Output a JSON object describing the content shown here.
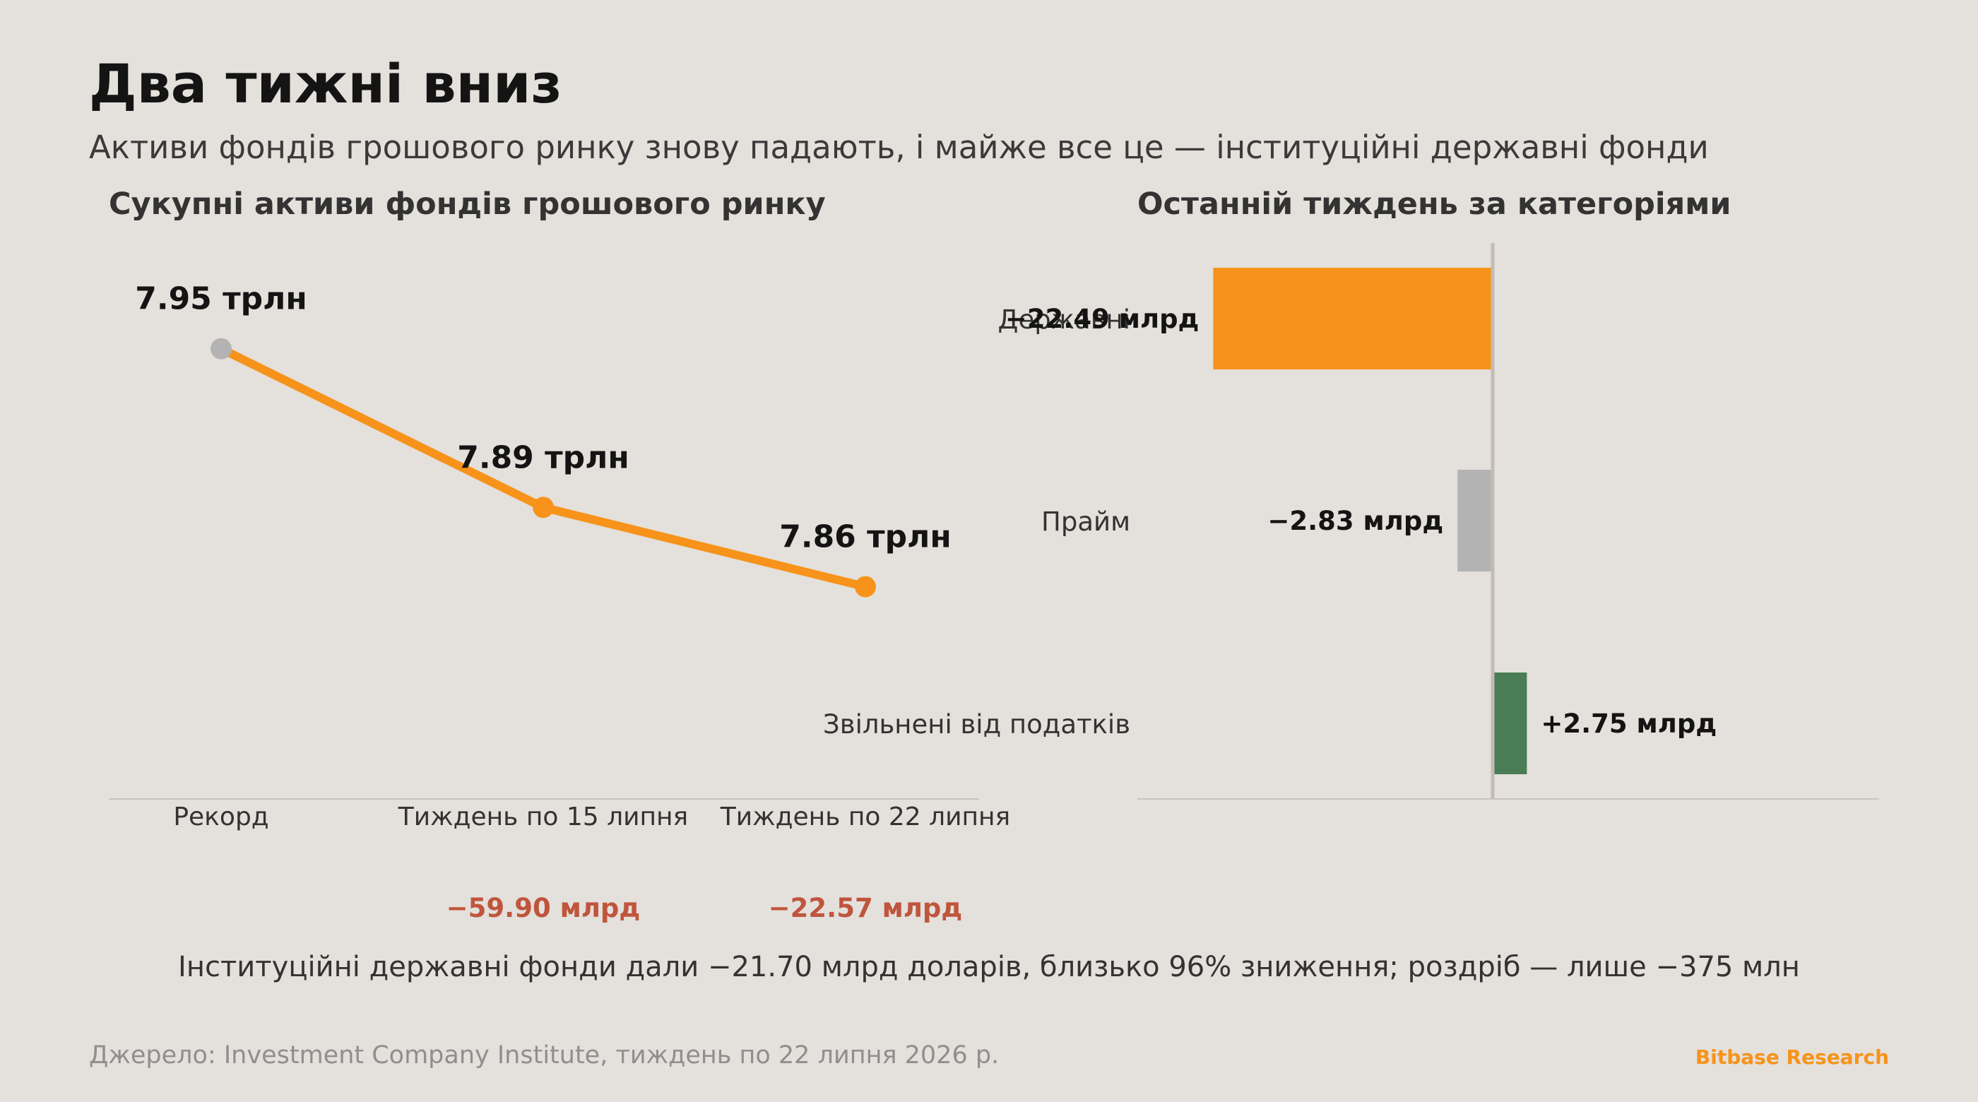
{
  "header": {
    "title": "Два тижні вниз",
    "subtitle": "Активи фондів грошового ринку знову падають, і майже все це — інституційні державні фонди"
  },
  "colors": {
    "accent": "#f7931a",
    "gray": "#b3b3b3",
    "positive": "#4a7c55",
    "negative_text": "#c0553d",
    "background": "#e4e0db"
  },
  "chart_data": [
    {
      "type": "line",
      "title": "Сукупні активи фондів грошового ринку",
      "categories": [
        "Рекорд",
        "Тиждень по 15 липня",
        "Тиждень по 22 липня"
      ],
      "values": [
        7.95,
        7.89,
        7.86
      ],
      "value_labels": [
        "7.95 трлн",
        "7.89 трлн",
        "7.86 трлн"
      ],
      "changes": [
        "",
        "−59.90 млрд",
        "−22.57 млрд"
      ],
      "ylim": [
        7.78,
        7.99
      ],
      "grid": false,
      "legend": "none"
    },
    {
      "type": "bar",
      "orientation": "horizontal",
      "title": "Останній тиждень за категоріями",
      "categories": [
        "Державні",
        "Прайм",
        "Звільнені від податків"
      ],
      "values": [
        -22.49,
        -2.83,
        2.75
      ],
      "value_labels": [
        "−22.49 млрд",
        "−2.83 млрд",
        "+2.75 млрд"
      ],
      "unit": "млрд",
      "xlim": [
        -28.6,
        31.1
      ],
      "grid": false,
      "legend": "none"
    }
  ],
  "note": "Інституційні державні фонди дали −21.70 млрд доларів, близько 96% зниження; роздріб — лише −375 млн",
  "footer": {
    "source": "Джерело: Investment Company Institute, тиждень по 22 липня 2026 р.",
    "brand": "Bitbase Research"
  }
}
